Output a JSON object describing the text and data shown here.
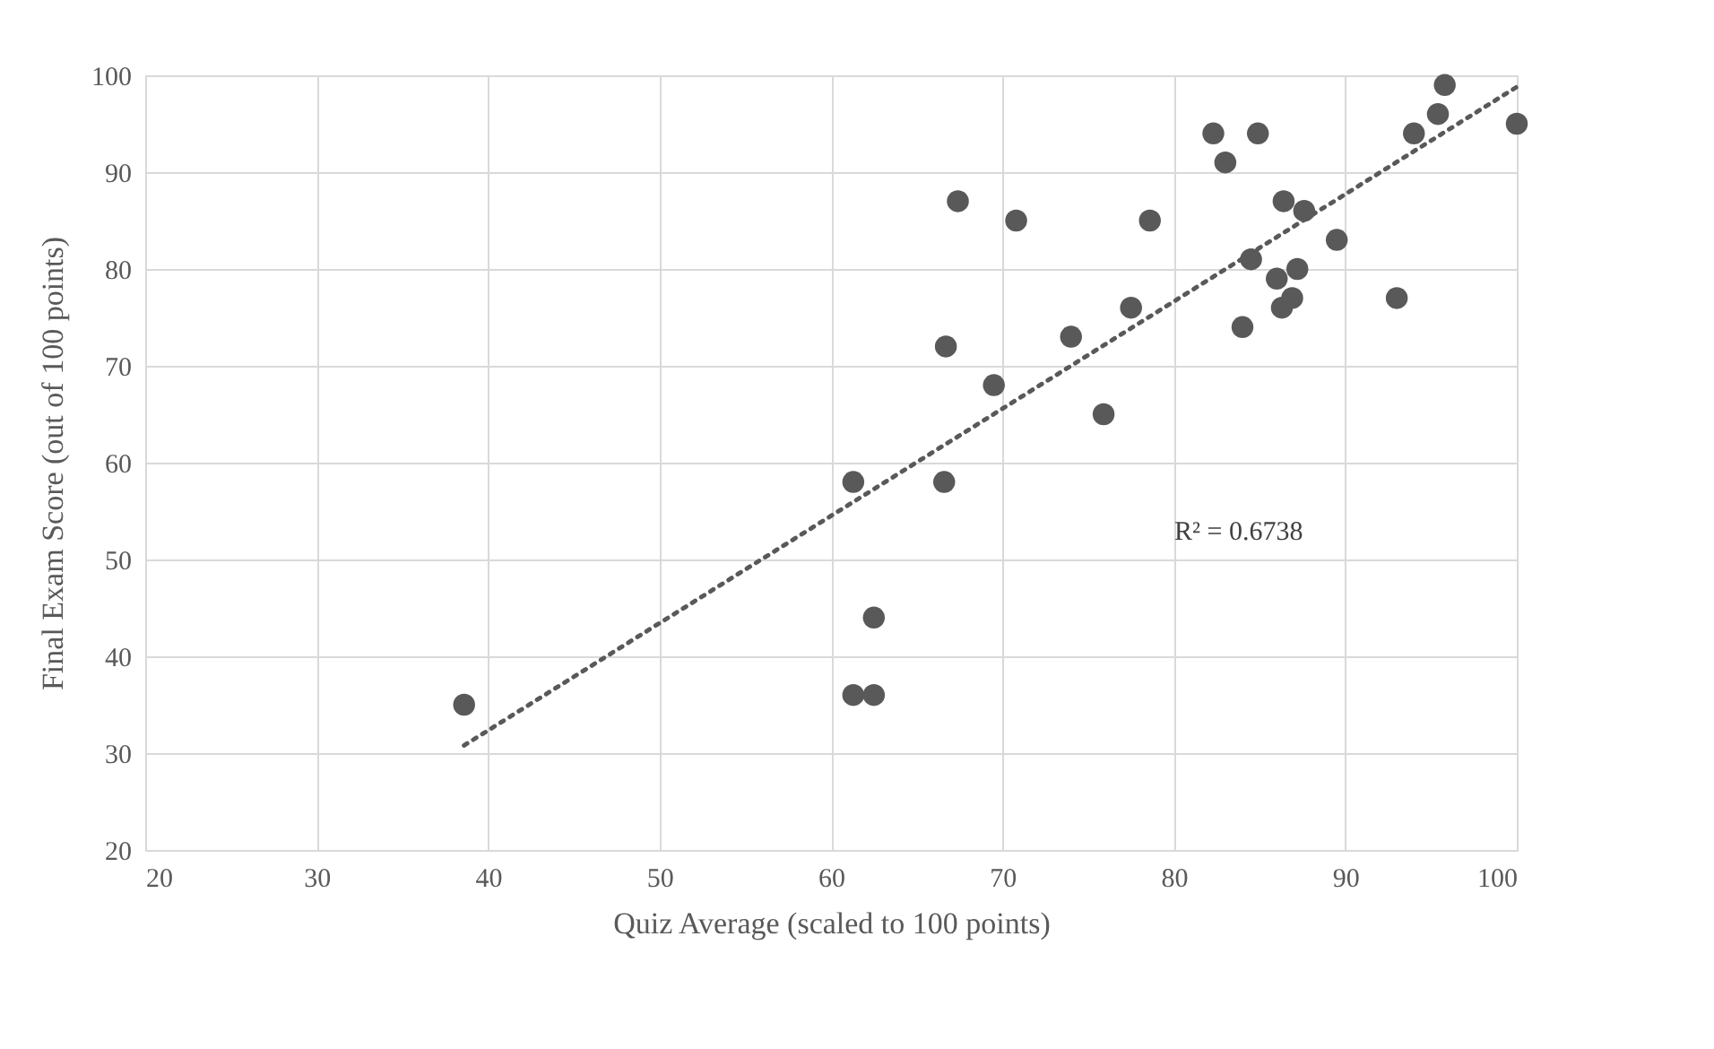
{
  "chart_data": {
    "type": "scatter",
    "xlabel": "Quiz Average (scaled to 100 points)",
    "ylabel": "Final Exam Score (out of 100 points)",
    "xlim": [
      20,
      100
    ],
    "xticks": [
      20,
      30,
      40,
      50,
      60,
      70,
      80,
      90,
      100
    ],
    "ylim": [
      20,
      100
    ],
    "yticks": [
      20,
      30,
      40,
      50,
      60,
      70,
      80,
      90,
      100
    ],
    "grid": true,
    "series": [
      {
        "marker": "circle",
        "color": "#595959",
        "x": [
          38.6,
          61.3,
          61.3,
          62.5,
          62.5,
          66.6,
          66.7,
          67.4,
          69.5,
          70.8,
          74.0,
          75.9,
          77.5,
          78.6,
          82.3,
          83.0,
          84.0,
          84.5,
          84.9,
          86.0,
          86.4,
          86.3,
          86.9,
          87.2,
          87.6,
          89.5,
          93.0,
          94.0,
          95.4,
          95.8,
          100
        ],
        "values": [
          35,
          58,
          36,
          36,
          44,
          58,
          72,
          87,
          68,
          85,
          73,
          65,
          76,
          85,
          94,
          91,
          74,
          81,
          94,
          79,
          87,
          76,
          77,
          80,
          86,
          83,
          77,
          94,
          96,
          99,
          95
        ]
      },
      {
        "type": "line",
        "color": "#595959",
        "line_style": "dotted",
        "x": [
          38.6,
          100
        ],
        "values": [
          30.8,
          98.8
        ]
      }
    ],
    "annotations": [
      "R² = 0.6738"
    ]
  }
}
